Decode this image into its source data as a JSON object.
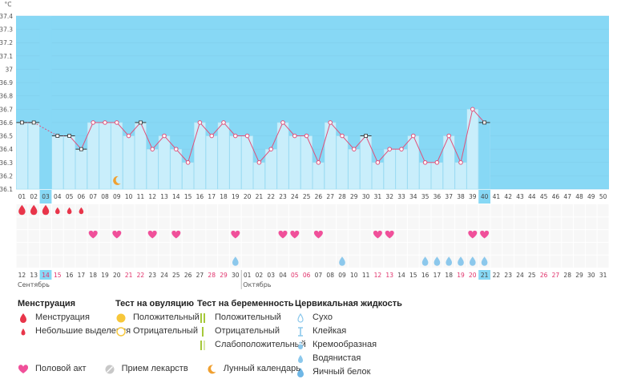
{
  "chart_data": {
    "type": "line",
    "unit_label": "°C",
    "ylim": [
      36.1,
      37.4
    ],
    "y_ticks": [
      "36.1",
      "36.2",
      "36.3",
      "36.4",
      "36.5",
      "36.6",
      "36.7",
      "36.8",
      "36.9",
      "37",
      "37.1",
      "37.2",
      "37.3",
      "37.4"
    ],
    "days": [
      "01",
      "02",
      "03",
      "04",
      "05",
      "06",
      "07",
      "08",
      "09",
      "10",
      "11",
      "12",
      "13",
      "14",
      "15",
      "16",
      "17",
      "18",
      "19",
      "20",
      "21",
      "22",
      "23",
      "24",
      "25",
      "26",
      "27",
      "28",
      "29",
      "30",
      "31",
      "32",
      "33",
      "34",
      "35",
      "36",
      "37",
      "38",
      "39",
      "40",
      "41",
      "42",
      "43",
      "44",
      "45",
      "46",
      "47",
      "48",
      "49",
      "50"
    ],
    "highlight_days": [
      3,
      40
    ],
    "temperatures": [
      36.6,
      36.6,
      null,
      36.5,
      36.5,
      36.4,
      36.6,
      36.6,
      36.6,
      36.5,
      36.6,
      36.4,
      36.5,
      36.4,
      36.3,
      36.6,
      36.5,
      36.6,
      36.5,
      36.5,
      36.3,
      36.4,
      36.6,
      36.5,
      36.5,
      36.3,
      36.6,
      36.5,
      36.4,
      36.5,
      36.3,
      36.4,
      36.4,
      36.5,
      36.3,
      36.3,
      36.5,
      36.3,
      36.7,
      36.6
    ],
    "point_styles": [
      "square",
      "square",
      null,
      "square",
      "square",
      "square",
      "circle",
      "circle",
      "circle",
      "circle",
      "square",
      "circle",
      "circle",
      "circle",
      "circle",
      "circle",
      "circle",
      "circle",
      "circle",
      "circle",
      "circle",
      "circle",
      "circle",
      "circle",
      "circle",
      "circle",
      "circle",
      "circle",
      "circle",
      "square",
      "circle",
      "circle",
      "circle",
      "circle",
      "circle",
      "circle",
      "circle",
      "circle",
      "circle",
      "square"
    ],
    "dashed_segments": [
      [
        2,
        4
      ]
    ],
    "moon_day": 9,
    "menstruation_heavy": [
      1,
      2,
      3
    ],
    "menstruation_light": [
      4,
      5,
      6
    ],
    "intercourse_days": [
      7,
      9,
      12,
      14,
      19,
      23,
      24,
      26,
      31,
      32,
      39,
      40
    ],
    "egg_white_days": [
      19,
      28,
      35,
      36,
      37,
      38,
      39,
      40
    ],
    "calendar_dates": [
      "12",
      "13",
      "14",
      "15",
      "16",
      "17",
      "18",
      "19",
      "20",
      "21",
      "22",
      "23",
      "24",
      "25",
      "26",
      "27",
      "28",
      "29",
      "30",
      "01",
      "02",
      "03",
      "04",
      "05",
      "06",
      "07",
      "08",
      "09",
      "10",
      "11",
      "12",
      "13",
      "14",
      "15",
      "16",
      "17",
      "18",
      "19",
      "20",
      "21",
      "22",
      "23",
      "24",
      "25",
      "26",
      "27",
      "28",
      "29",
      "30",
      "31"
    ],
    "red_dates_idx": [
      2,
      3,
      9,
      10,
      16,
      17,
      23,
      24,
      30,
      31,
      37,
      38,
      44,
      45
    ],
    "month_labels": [
      {
        "idx": 1,
        "label": "Сентябрь"
      },
      {
        "idx": 20,
        "label": "Октябрь"
      }
    ],
    "colors": {
      "sky": "#87d8f5",
      "bar": "#c9eefb",
      "bar_highlight": "#87d8f5",
      "bar_border": "#9fdcf2",
      "grid_bg": "#f7f7f7",
      "line": "#e0507a",
      "menstruation": "#e8354a",
      "intercourse": "#f0509a",
      "egg_white": "#8cc8ec"
    }
  },
  "legend": {
    "menstruation": {
      "title": "Менструация",
      "items": [
        "Менструация",
        "Небольшие выделения"
      ]
    },
    "ovulation": {
      "title": "Тест на овуляцию",
      "items": [
        "Положительный",
        "Отрицательный"
      ]
    },
    "pregnancy": {
      "title": "Тест на беременность",
      "items": [
        "Положительный",
        "Отрицательный",
        "Слабоположительный"
      ]
    },
    "cervical": {
      "title": "Цервикальная жидкость",
      "items": [
        "Сухо",
        "Клейкая",
        "Кремообразная",
        "Водянистая",
        "Яичный белок"
      ]
    },
    "bottom": [
      "Половой акт",
      "Прием лекарств",
      "Лунный календарь"
    ]
  }
}
